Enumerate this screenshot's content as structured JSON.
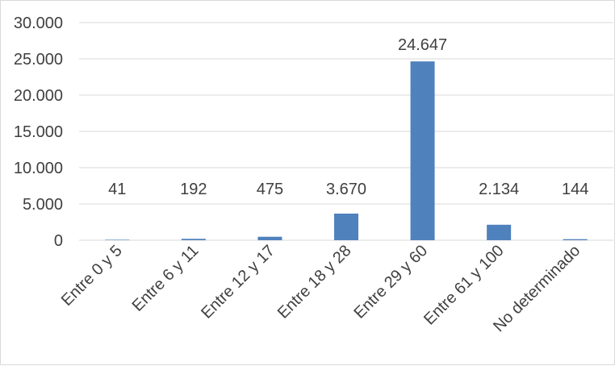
{
  "chart_data": {
    "type": "bar",
    "title": "",
    "xlabel": "",
    "ylabel": "",
    "categories": [
      "Entre 0 y 5",
      "Entre 6 y 11",
      "Entre 12 y 17",
      "Entre 18 y 28",
      "Entre 29 y 60",
      "Entre 61 y 100",
      "No determinado"
    ],
    "values": [
      41,
      192,
      475,
      3670,
      24647,
      2134,
      144
    ],
    "data_labels": [
      "41",
      "192",
      "475",
      "3.670",
      "24.647",
      "2.134",
      "144"
    ],
    "ylim": [
      0,
      30000
    ],
    "yticks": [
      0,
      5000,
      10000,
      15000,
      20000,
      25000,
      30000
    ],
    "ytick_labels": [
      "0",
      "5.000",
      "10.000",
      "15.000",
      "20.000",
      "25.000",
      "30.000"
    ],
    "grid": true,
    "legend": "none",
    "colors": {
      "bar": "#4F81BD",
      "grid": "#D9D9D9",
      "text": "#404040"
    }
  }
}
